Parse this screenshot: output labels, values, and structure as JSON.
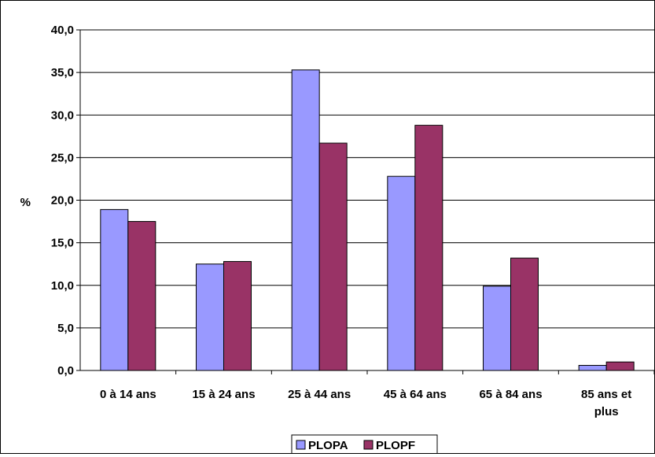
{
  "chart_data": {
    "type": "bar",
    "categories": [
      "0 à 14 ans",
      "15 à 24 ans",
      "25 à 44 ans",
      "45 à 64 ans",
      "65 à 84 ans",
      "85 ans et plus"
    ],
    "category_lines": [
      [
        "0 à 14 ans"
      ],
      [
        "15 à 24 ans"
      ],
      [
        "25 à 44 ans"
      ],
      [
        "45 à 64 ans"
      ],
      [
        "65 à 84 ans"
      ],
      [
        "85 ans et",
        "plus"
      ]
    ],
    "series": [
      {
        "name": "PLOPA",
        "color": "#9999FF",
        "values": [
          18.9,
          12.5,
          35.3,
          22.8,
          9.9,
          0.6
        ]
      },
      {
        "name": "PLOPF",
        "color": "#993366",
        "values": [
          17.5,
          12.8,
          26.7,
          28.8,
          13.2,
          1.0
        ]
      }
    ],
    "title": "",
    "xlabel": "",
    "ylabel": "%",
    "ylim": [
      0,
      40
    ],
    "yticks": [
      "0,0",
      "5,0",
      "10,0",
      "15,0",
      "20,0",
      "25,0",
      "30,0",
      "35,0",
      "40,0"
    ],
    "grid": true,
    "legend_position": "bottom"
  }
}
